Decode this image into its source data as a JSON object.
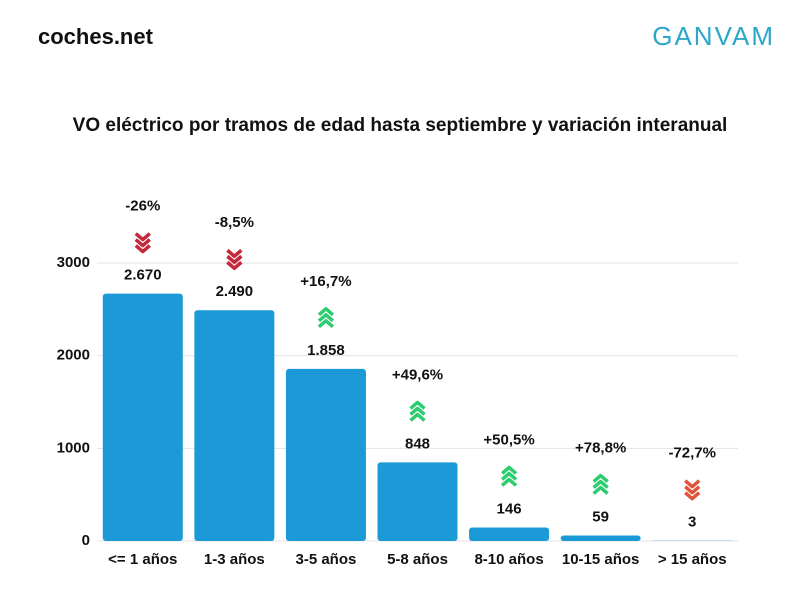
{
  "brand_left": "coches.net",
  "brand_right": "GANVAM",
  "chart_data": {
    "type": "bar",
    "title": "VO eléctrico por tramos de edad hasta septiembre y variación interanual",
    "categories": [
      "<= 1 años",
      "1-3 años",
      "3-5 años",
      "5-8 años",
      "8-10 años",
      "10-15 años",
      "> 15 años"
    ],
    "values": [
      2670,
      2490,
      1858,
      848,
      146,
      59,
      3
    ],
    "value_labels": [
      "2.670",
      "2.490",
      "1.858",
      "848",
      "146",
      "59",
      "3"
    ],
    "variation": [
      -26,
      -8.5,
      16.7,
      49.6,
      50.5,
      78.8,
      -72.7
    ],
    "variation_labels": [
      "-26%",
      "-8,5%",
      "+16,7%",
      "+49,6%",
      "+50,5%",
      "+78,8%",
      "-72,7%"
    ],
    "arrow_colors": [
      "#c4283a",
      "#c4283a",
      "#2ecc71",
      "#2ecc71",
      "#2ecc71",
      "#2ecc71",
      "#e0553a"
    ],
    "color": "#1b9ad7",
    "ylim": [
      0,
      3000
    ],
    "yticks": [
      0,
      1000,
      2000,
      3000
    ],
    "grid": true
  }
}
